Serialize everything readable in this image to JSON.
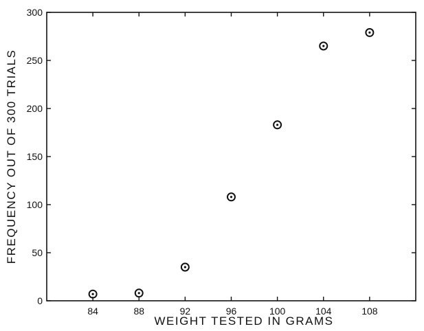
{
  "chart_data": {
    "type": "scatter",
    "title": "",
    "xlabel": "WEIGHT  TESTED  IN  GRAMS",
    "ylabel": "FREQUENCY  OUT  OF  300  TRIALS",
    "xlim": [
      80,
      112
    ],
    "ylim": [
      0,
      300
    ],
    "x_ticks": [
      84,
      88,
      92,
      96,
      100,
      104,
      108
    ],
    "x_tick_labels": [
      "84",
      "88",
      "92",
      "96",
      "100",
      "104",
      "108"
    ],
    "y_ticks": [
      0,
      50,
      100,
      150,
      200,
      250,
      300
    ],
    "y_tick_labels": [
      "0",
      "50",
      "100",
      "150",
      "200",
      "250",
      "300"
    ],
    "grid": false,
    "marker": "circle-dot",
    "series": [
      {
        "x": [
          84,
          88,
          92,
          96,
          100,
          104,
          108
        ],
        "y": [
          7,
          8,
          35,
          108,
          183,
          265,
          279
        ]
      }
    ]
  }
}
